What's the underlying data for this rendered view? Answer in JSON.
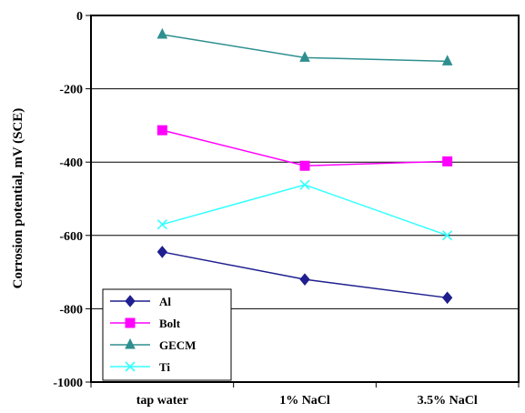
{
  "chart_data": {
    "type": "line",
    "title": "",
    "xlabel": "",
    "ylabel": "Corrosion potential, mV (SCE)",
    "categories": [
      "tap water",
      "1% NaCl",
      "3.5% NaCl"
    ],
    "ylim": [
      -1000,
      0
    ],
    "yticks": [
      0,
      -200,
      -400,
      -600,
      -800,
      -1000
    ],
    "grid": "horizontal",
    "legend_position": "bottom-left",
    "series": [
      {
        "name": "Al",
        "values": [
          -645,
          -720,
          -770
        ],
        "color": "#1f1f8f",
        "marker": "diamond"
      },
      {
        "name": "Bolt",
        "values": [
          -313,
          -410,
          -398
        ],
        "color": "#ff00ff",
        "marker": "square"
      },
      {
        "name": "GECM",
        "values": [
          -52,
          -115,
          -125
        ],
        "color": "#2f8f8f",
        "marker": "triangle"
      },
      {
        "name": "Ti",
        "values": [
          -570,
          -462,
          -600
        ],
        "color": "#33ffff",
        "marker": "x"
      }
    ]
  }
}
